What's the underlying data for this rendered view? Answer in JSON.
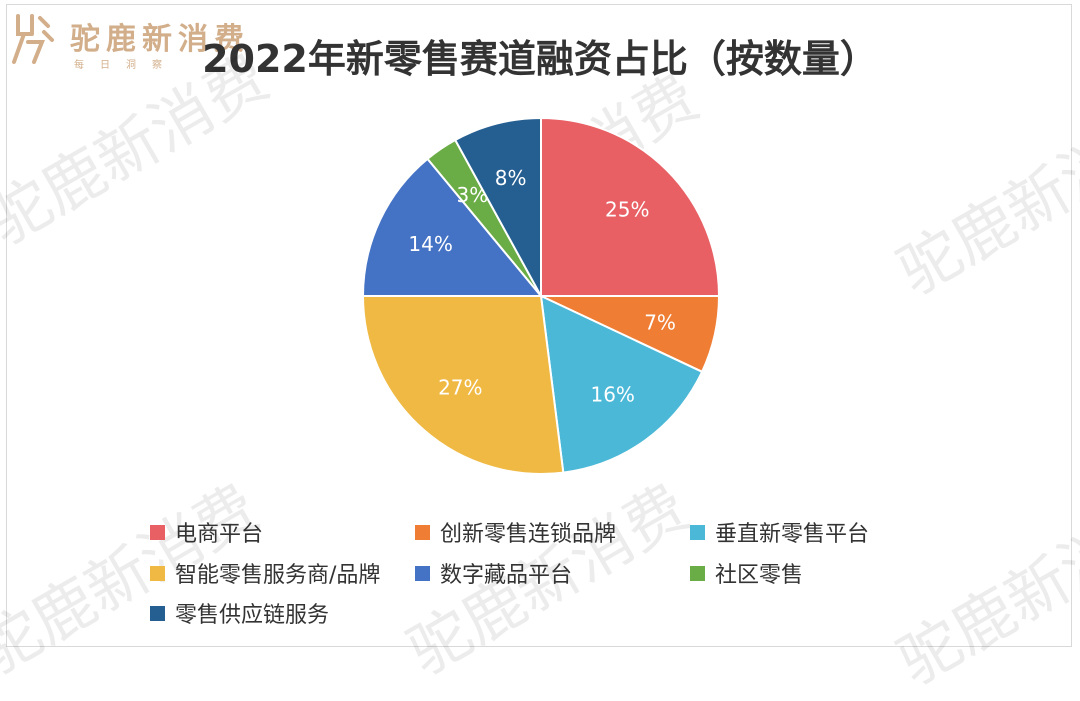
{
  "brand": {
    "name": "驼鹿新消费",
    "tagline": "每日洞察",
    "color": "#c89a6d",
    "icon": "moose-logo-icon"
  },
  "watermark_text": "驼鹿新消费",
  "chart_data": {
    "type": "pie",
    "title": "2022年新零售赛道融资占比（按数量）",
    "legend_position": "bottom",
    "series": [
      {
        "name": "电商平台",
        "value": 25,
        "label": "25%",
        "color": "#e85f64"
      },
      {
        "name": "创新零售连锁品牌",
        "value": 7,
        "label": "7%",
        "color": "#ef7e34"
      },
      {
        "name": "垂直新零售平台",
        "value": 16,
        "label": "16%",
        "color": "#4ab8d6"
      },
      {
        "name": "智能零售服务商/品牌",
        "value": 27,
        "label": "27%",
        "color": "#efb943"
      },
      {
        "name": "数字藏品平台",
        "value": 14,
        "label": "14%",
        "color": "#4472c4"
      },
      {
        "name": "社区零售",
        "value": 3,
        "label": "3%",
        "color": "#6aac45"
      },
      {
        "name": "零售供应链服务",
        "value": 8,
        "label": "8%",
        "color": "#255e91"
      }
    ]
  }
}
